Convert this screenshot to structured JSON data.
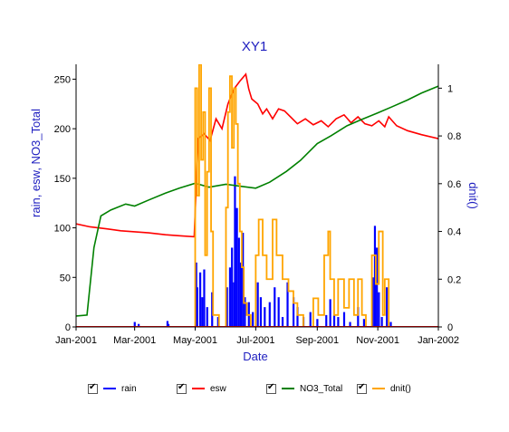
{
  "chart_data": {
    "type": "line",
    "title": "XY1",
    "xlabel": "Date",
    "ylabel_left": "rain, esw, NO3_Total",
    "ylabel_right": "dnit()",
    "xlim": [
      "2001-01-01",
      "2002-01-01"
    ],
    "ylim_left": [
      0,
      265
    ],
    "ylim_right": [
      0,
      1.1
    ],
    "x_tick_labels": [
      "Jan-2001",
      "Mar-2001",
      "May-2001",
      "Jul-2001",
      "Sep-2001",
      "Nov-2001",
      "Jan-2002"
    ],
    "x_tick_dates": [
      "2001-01-01",
      "2001-03-01",
      "2001-05-01",
      "2001-07-01",
      "2001-09-01",
      "2001-11-01",
      "2002-01-01"
    ],
    "y_left_ticks": [
      0,
      50,
      100,
      150,
      200,
      250
    ],
    "y_right_ticks": [
      0,
      0.2,
      0.4,
      0.6,
      0.8,
      1
    ],
    "y_right_tick_labels": [
      "0",
      "0.2",
      "0.4",
      "0.6",
      "0.8",
      "1"
    ],
    "grid": false,
    "legend_position": "bottom",
    "series": [
      {
        "name": "rain",
        "axis": "left",
        "color": "#0000ff",
        "style": "bar",
        "points": [
          [
            "2001-03-01",
            5
          ],
          [
            "2001-03-05",
            3
          ],
          [
            "2001-04-03",
            6
          ],
          [
            "2001-04-04",
            3
          ],
          [
            "2001-05-02",
            65
          ],
          [
            "2001-05-03",
            40
          ],
          [
            "2001-05-06",
            55
          ],
          [
            "2001-05-08",
            30
          ],
          [
            "2001-05-10",
            58
          ],
          [
            "2001-05-13",
            20
          ],
          [
            "2001-05-18",
            35
          ],
          [
            "2001-05-24",
            10
          ],
          [
            "2001-06-02",
            40
          ],
          [
            "2001-06-05",
            60
          ],
          [
            "2001-06-07",
            80
          ],
          [
            "2001-06-09",
            45
          ],
          [
            "2001-06-10",
            152
          ],
          [
            "2001-06-12",
            120
          ],
          [
            "2001-06-14",
            90
          ],
          [
            "2001-06-16",
            65
          ],
          [
            "2001-06-18",
            95
          ],
          [
            "2001-06-20",
            30
          ],
          [
            "2001-06-24",
            25
          ],
          [
            "2001-06-28",
            15
          ],
          [
            "2001-07-03",
            45
          ],
          [
            "2001-07-06",
            30
          ],
          [
            "2001-07-10",
            20
          ],
          [
            "2001-07-15",
            25
          ],
          [
            "2001-07-20",
            40
          ],
          [
            "2001-07-24",
            30
          ],
          [
            "2001-07-28",
            10
          ],
          [
            "2001-08-02",
            45
          ],
          [
            "2001-08-08",
            30
          ],
          [
            "2001-08-12",
            20
          ],
          [
            "2001-08-18",
            10
          ],
          [
            "2001-08-25",
            15
          ],
          [
            "2001-09-01",
            8
          ],
          [
            "2001-09-10",
            12
          ],
          [
            "2001-09-14",
            28
          ],
          [
            "2001-09-18",
            12
          ],
          [
            "2001-09-22",
            10
          ],
          [
            "2001-09-28",
            15
          ],
          [
            "2001-10-04",
            5
          ],
          [
            "2001-10-12",
            20
          ],
          [
            "2001-10-18",
            8
          ],
          [
            "2001-10-27",
            50
          ],
          [
            "2001-10-29",
            102
          ],
          [
            "2001-10-31",
            80
          ],
          [
            "2001-11-02",
            35
          ],
          [
            "2001-11-05",
            10
          ],
          [
            "2001-11-10",
            40
          ],
          [
            "2001-11-14",
            5
          ]
        ]
      },
      {
        "name": "esw",
        "axis": "left",
        "color": "#ff0000",
        "style": "line",
        "points": [
          [
            "2001-01-01",
            104
          ],
          [
            "2001-01-15",
            101
          ],
          [
            "2001-02-01",
            99
          ],
          [
            "2001-02-15",
            97
          ],
          [
            "2001-03-01",
            96
          ],
          [
            "2001-03-15",
            95
          ],
          [
            "2001-04-01",
            93
          ],
          [
            "2001-04-15",
            92
          ],
          [
            "2001-04-30",
            91
          ],
          [
            "2001-05-04",
            190
          ],
          [
            "2001-05-10",
            195
          ],
          [
            "2001-05-16",
            188
          ],
          [
            "2001-05-22",
            210
          ],
          [
            "2001-05-28",
            200
          ],
          [
            "2001-06-03",
            225
          ],
          [
            "2001-06-09",
            240
          ],
          [
            "2001-06-15",
            248
          ],
          [
            "2001-06-21",
            255
          ],
          [
            "2001-06-24",
            240
          ],
          [
            "2001-06-27",
            230
          ],
          [
            "2001-07-03",
            225
          ],
          [
            "2001-07-08",
            215
          ],
          [
            "2001-07-12",
            220
          ],
          [
            "2001-07-18",
            210
          ],
          [
            "2001-07-24",
            220
          ],
          [
            "2001-07-30",
            218
          ],
          [
            "2001-08-05",
            212
          ],
          [
            "2001-08-12",
            205
          ],
          [
            "2001-08-20",
            210
          ],
          [
            "2001-08-28",
            204
          ],
          [
            "2001-09-05",
            208
          ],
          [
            "2001-09-12",
            202
          ],
          [
            "2001-09-20",
            210
          ],
          [
            "2001-09-28",
            214
          ],
          [
            "2001-10-05",
            206
          ],
          [
            "2001-10-12",
            212
          ],
          [
            "2001-10-19",
            205
          ],
          [
            "2001-10-26",
            203
          ],
          [
            "2001-11-02",
            208
          ],
          [
            "2001-11-08",
            202
          ],
          [
            "2001-11-12",
            212
          ],
          [
            "2001-11-20",
            203
          ],
          [
            "2001-12-01",
            198
          ],
          [
            "2001-12-15",
            194
          ],
          [
            "2002-01-01",
            190
          ]
        ]
      },
      {
        "name": "NO3_Total",
        "axis": "left",
        "color": "#008000",
        "style": "line",
        "points": [
          [
            "2001-01-01",
            11
          ],
          [
            "2001-01-12",
            12
          ],
          [
            "2001-01-19",
            80
          ],
          [
            "2001-01-26",
            112
          ],
          [
            "2001-02-05",
            118
          ],
          [
            "2001-02-20",
            124
          ],
          [
            "2001-03-01",
            122
          ],
          [
            "2001-03-15",
            128
          ],
          [
            "2001-04-01",
            135
          ],
          [
            "2001-04-15",
            140
          ],
          [
            "2001-05-01",
            145
          ],
          [
            "2001-05-15",
            141
          ],
          [
            "2001-06-01",
            144
          ],
          [
            "2001-06-15",
            142
          ],
          [
            "2001-07-01",
            140
          ],
          [
            "2001-07-15",
            146
          ],
          [
            "2001-08-01",
            157
          ],
          [
            "2001-08-15",
            168
          ],
          [
            "2001-09-01",
            185
          ],
          [
            "2001-09-15",
            193
          ],
          [
            "2001-10-01",
            203
          ],
          [
            "2001-10-15",
            209
          ],
          [
            "2001-11-01",
            216
          ],
          [
            "2001-11-15",
            222
          ],
          [
            "2001-12-01",
            229
          ],
          [
            "2001-12-15",
            236
          ],
          [
            "2002-01-01",
            243
          ]
        ]
      },
      {
        "name": "dnit()",
        "axis": "right",
        "color": "#ffa500",
        "style": "step",
        "points": [
          [
            "2001-01-01",
            0
          ],
          [
            "2001-04-28",
            0
          ],
          [
            "2001-05-01",
            1.0
          ],
          [
            "2001-05-03",
            0.55
          ],
          [
            "2001-05-05",
            1.1
          ],
          [
            "2001-05-07",
            0.7
          ],
          [
            "2001-05-09",
            0.9
          ],
          [
            "2001-05-11",
            0.3
          ],
          [
            "2001-05-13",
            0.65
          ],
          [
            "2001-05-15",
            1.0
          ],
          [
            "2001-05-17",
            0.4
          ],
          [
            "2001-05-19",
            0.05
          ],
          [
            "2001-05-25",
            0
          ],
          [
            "2001-06-01",
            0.5
          ],
          [
            "2001-06-03",
            0.9
          ],
          [
            "2001-06-05",
            1.05
          ],
          [
            "2001-06-07",
            0.75
          ],
          [
            "2001-06-09",
            1.0
          ],
          [
            "2001-06-11",
            0.85
          ],
          [
            "2001-06-13",
            0.6
          ],
          [
            "2001-06-15",
            0.4
          ],
          [
            "2001-06-17",
            0.25
          ],
          [
            "2001-06-19",
            0.1
          ],
          [
            "2001-06-22",
            0.05
          ],
          [
            "2001-06-26",
            0
          ],
          [
            "2001-07-01",
            0.3
          ],
          [
            "2001-07-04",
            0.45
          ],
          [
            "2001-07-08",
            0.3
          ],
          [
            "2001-07-12",
            0.2
          ],
          [
            "2001-07-18",
            0.45
          ],
          [
            "2001-07-22",
            0.3
          ],
          [
            "2001-07-28",
            0.2
          ],
          [
            "2001-08-03",
            0.15
          ],
          [
            "2001-08-08",
            0.1
          ],
          [
            "2001-08-12",
            0.05
          ],
          [
            "2001-08-18",
            0
          ],
          [
            "2001-08-28",
            0.12
          ],
          [
            "2001-09-02",
            0.05
          ],
          [
            "2001-09-08",
            0.3
          ],
          [
            "2001-09-12",
            0.4
          ],
          [
            "2001-09-14",
            0.2
          ],
          [
            "2001-09-18",
            0.05
          ],
          [
            "2001-09-22",
            0.2
          ],
          [
            "2001-09-28",
            0.08
          ],
          [
            "2001-10-03",
            0.2
          ],
          [
            "2001-10-08",
            0.05
          ],
          [
            "2001-10-12",
            0.2
          ],
          [
            "2001-10-16",
            0.05
          ],
          [
            "2001-10-20",
            0
          ],
          [
            "2001-10-26",
            0.3
          ],
          [
            "2001-10-30",
            0.18
          ],
          [
            "2001-11-02",
            0.4
          ],
          [
            "2001-11-06",
            0.05
          ],
          [
            "2001-11-08",
            0.2
          ],
          [
            "2001-11-12",
            0
          ],
          [
            "2002-01-01",
            0
          ]
        ]
      }
    ]
  }
}
